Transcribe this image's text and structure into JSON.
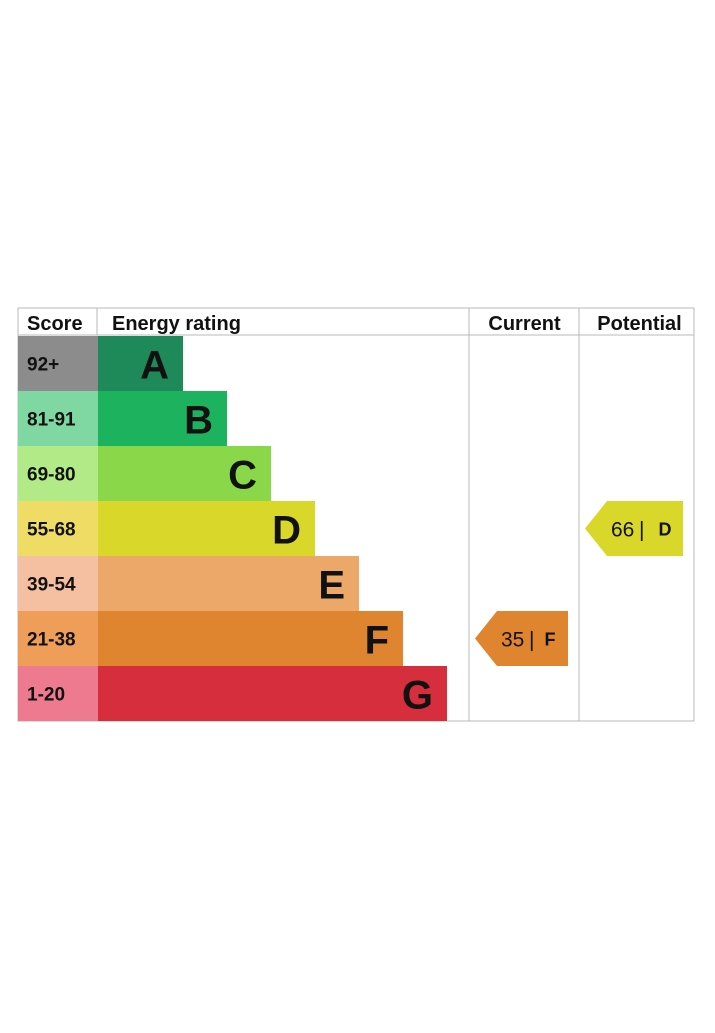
{
  "chart_data": {
    "type": "bar",
    "headers": {
      "score": "Score",
      "rating": "Energy rating",
      "current": "Current",
      "potential": "Potential"
    },
    "bands": [
      {
        "letter": "A",
        "range": "92+",
        "score_color": "#8c8c8c",
        "bar_color": "#1e8a5a"
      },
      {
        "letter": "B",
        "range": "81-91",
        "score_color": "#7fd8a2",
        "bar_color": "#1db35e"
      },
      {
        "letter": "C",
        "range": "69-80",
        "score_color": "#b1ea87",
        "bar_color": "#8ad84a"
      },
      {
        "letter": "D",
        "range": "55-68",
        "score_color": "#eedc64",
        "bar_color": "#d9d82a"
      },
      {
        "letter": "E",
        "range": "39-54",
        "score_color": "#f5c0a2",
        "bar_color": "#eba868"
      },
      {
        "letter": "F",
        "range": "21-38",
        "score_color": "#ee9e58",
        "bar_color": "#e0852f"
      },
      {
        "letter": "G",
        "range": "1-20",
        "score_color": "#ee7a90",
        "bar_color": "#d62e3c"
      }
    ],
    "current": {
      "value": 35,
      "letter": "F",
      "color": "#e0852f"
    },
    "potential": {
      "value": 66,
      "letter": "D",
      "color": "#d9d82a"
    }
  }
}
